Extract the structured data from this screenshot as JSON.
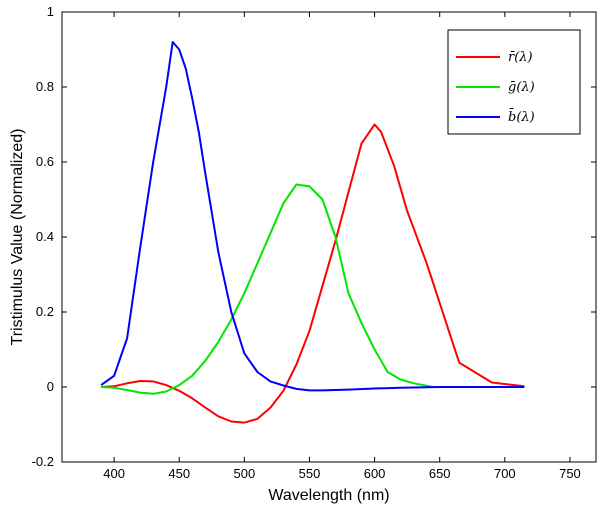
{
  "chart_data": {
    "type": "line",
    "xlabel": "Wavelength (nm)",
    "ylabel": "Tristimulus Value (Normalized)",
    "xlim": [
      360,
      770
    ],
    "ylim": [
      -0.2,
      1.0
    ],
    "xticks": [
      "400",
      "450",
      "500",
      "550",
      "600",
      "650",
      "700",
      "750"
    ],
    "yticks": [
      "-0.2",
      "0",
      "0.2",
      "0.4",
      "0.6",
      "0.8",
      "1"
    ],
    "legend_position": "top-right",
    "grid": false,
    "series": [
      {
        "name": "r̄(λ)",
        "color": "#ff0000",
        "x": [
          390,
          400,
          410,
          420,
          430,
          440,
          450,
          460,
          470,
          480,
          490,
          500,
          510,
          520,
          530,
          540,
          550,
          560,
          570,
          580,
          590,
          600,
          605,
          615,
          625,
          640,
          665,
          690,
          715
        ],
        "y": [
          0.0,
          0.002,
          0.01,
          0.016,
          0.015,
          0.005,
          -0.01,
          -0.03,
          -0.055,
          -0.078,
          -0.092,
          -0.095,
          -0.085,
          -0.055,
          -0.01,
          0.06,
          0.15,
          0.27,
          0.39,
          0.52,
          0.65,
          0.7,
          0.68,
          0.59,
          0.47,
          0.33,
          0.065,
          0.012,
          0.002
        ]
      },
      {
        "name": "ḡ(λ)",
        "color": "#00e600",
        "x": [
          390,
          400,
          410,
          420,
          430,
          440,
          450,
          460,
          470,
          480,
          490,
          500,
          510,
          520,
          530,
          540,
          550,
          560,
          570,
          580,
          590,
          600,
          610,
          620,
          630,
          645
        ],
        "y": [
          0.0,
          -0.002,
          -0.008,
          -0.015,
          -0.018,
          -0.012,
          0.005,
          0.03,
          0.07,
          0.12,
          0.18,
          0.25,
          0.33,
          0.41,
          0.49,
          0.54,
          0.535,
          0.5,
          0.4,
          0.25,
          0.17,
          0.1,
          0.04,
          0.02,
          0.01,
          0.0
        ]
      },
      {
        "name": "b̄(λ)",
        "color": "#0000ff",
        "x": [
          390,
          400,
          405,
          410,
          420,
          430,
          440,
          445,
          450,
          455,
          460,
          465,
          470,
          480,
          490,
          500,
          510,
          520,
          530,
          540,
          550,
          560,
          580,
          600,
          620,
          650,
          690,
          715
        ],
        "y": [
          0.005,
          0.03,
          0.08,
          0.13,
          0.37,
          0.6,
          0.8,
          0.92,
          0.9,
          0.85,
          0.77,
          0.68,
          0.57,
          0.36,
          0.2,
          0.09,
          0.04,
          0.015,
          0.004,
          -0.005,
          -0.009,
          -0.009,
          -0.007,
          -0.004,
          -0.002,
          0.0,
          0.0,
          0.0
        ]
      }
    ]
  }
}
